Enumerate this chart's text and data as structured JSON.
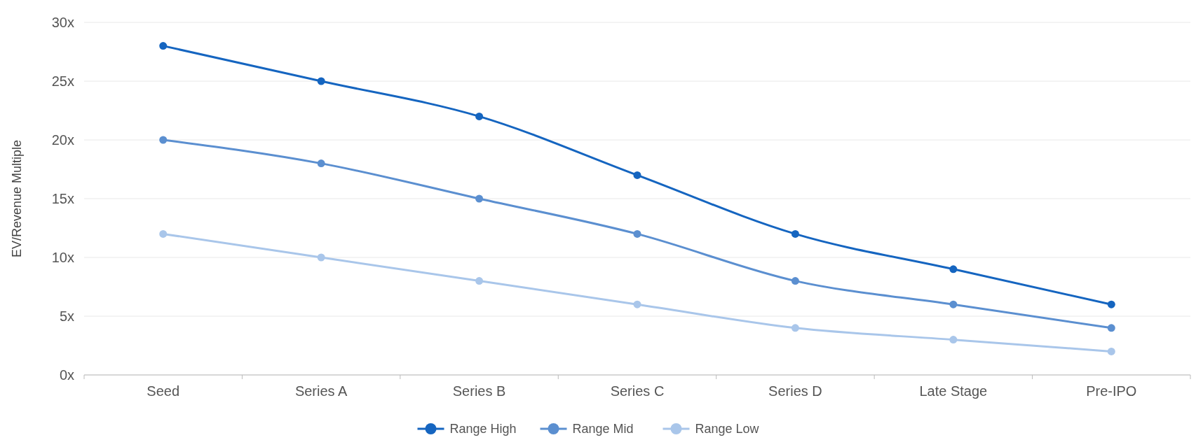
{
  "chart_data": {
    "type": "line",
    "ylabel": "EV/Revenue Multiple",
    "categories": [
      "Seed",
      "Series A",
      "Series B",
      "Series C",
      "Series D",
      "Late Stage",
      "Pre-IPO"
    ],
    "series": [
      {
        "name": "Range High",
        "color": "#1565c0",
        "values": [
          28,
          25,
          22,
          17,
          12,
          9,
          6
        ]
      },
      {
        "name": "Range Mid",
        "color": "#5b8fd0",
        "values": [
          20,
          18,
          15,
          12,
          8,
          6,
          4
        ]
      },
      {
        "name": "Range Low",
        "color": "#a9c6ea",
        "values": [
          12,
          10,
          8,
          6,
          4,
          3,
          2
        ]
      }
    ],
    "ylim": [
      0,
      30
    ],
    "yticks": [
      {
        "value": 0,
        "label": "0x"
      },
      {
        "value": 5,
        "label": "5x"
      },
      {
        "value": 10,
        "label": "10x"
      },
      {
        "value": 15,
        "label": "15x"
      },
      {
        "value": 20,
        "label": "20x"
      },
      {
        "value": 25,
        "label": "25x"
      },
      {
        "value": 30,
        "label": "30x"
      }
    ],
    "grid": "y",
    "legend": "bottom",
    "marker": "circle",
    "line_style": "solid"
  }
}
